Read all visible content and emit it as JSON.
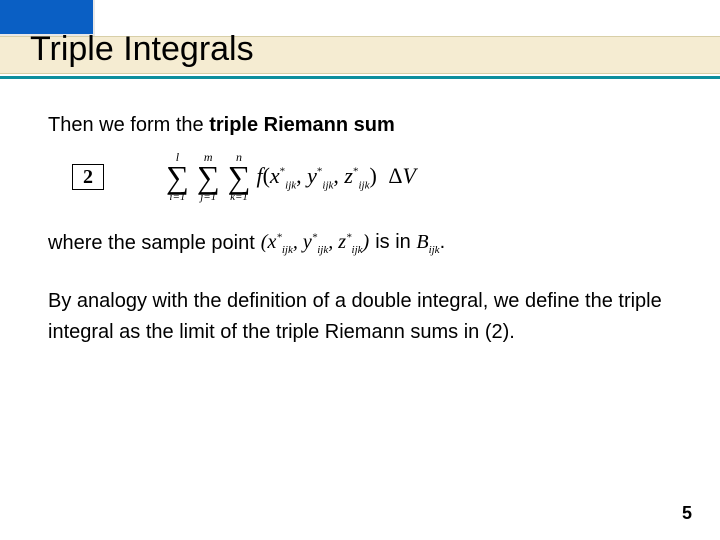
{
  "header": {
    "title": "Triple Integrals",
    "colors": {
      "blue_block": "#0a5fc4",
      "tan_bar": "#f5ecd2",
      "teal_line": "#0d8f9e"
    }
  },
  "body": {
    "line1_prefix": "Then we form the ",
    "line1_bold": "triple Riemann sum",
    "eq_number": "2",
    "sums": [
      {
        "top": "l",
        "bottom": "i=1"
      },
      {
        "top": "m",
        "bottom": "j=1"
      },
      {
        "top": "n",
        "bottom": "k=1"
      }
    ],
    "func_name": "f",
    "args": [
      {
        "base": "x",
        "sub": "ijk",
        "star": true
      },
      {
        "base": "y",
        "sub": "ijk",
        "star": true
      },
      {
        "base": "z",
        "sub": "ijk",
        "star": true
      }
    ],
    "delta": "Δ",
    "vol": "V",
    "line2_a": "where the sample point",
    "tuple_open": "(",
    "tuple_close": ")",
    "line2_b_pre": "is in ",
    "line2_b_var_base": "B",
    "line2_b_var_sub": "ijk",
    "line2_b_post": ".",
    "para3": "By analogy with the definition of a double integral, we define the triple integral as the limit of the triple Riemann sums in (2)."
  },
  "page_number": "5"
}
